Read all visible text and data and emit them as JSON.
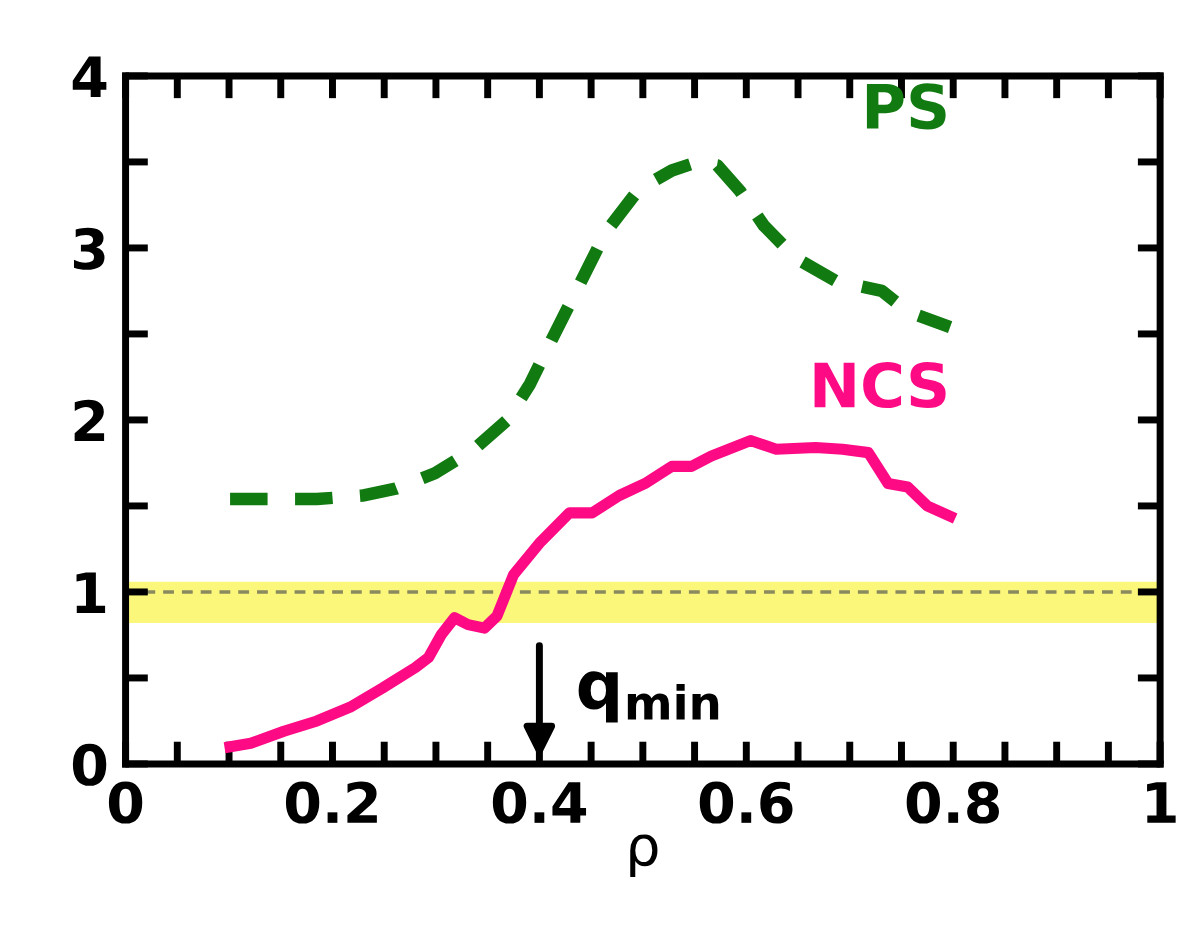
{
  "chart_data": {
    "type": "line",
    "xlabel": "ρ",
    "xlim": [
      0,
      1
    ],
    "ylim": [
      0,
      4
    ],
    "xticks": [
      0,
      {
        "value": 0.05,
        "label": null
      },
      0.2,
      {
        "value": 0.1,
        "label": null
      },
      {
        "value": 0.15,
        "label": null
      },
      {
        "value": 0.25,
        "label": null
      },
      {
        "value": 0.3,
        "label": null
      },
      {
        "value": 0.35,
        "label": null
      },
      0.4,
      {
        "value": 0.45,
        "label": null
      },
      {
        "value": 0.5,
        "label": null
      },
      {
        "value": 0.55,
        "label": null
      },
      0.6,
      {
        "value": 0.65,
        "label": null
      },
      {
        "value": 0.7,
        "label": null
      },
      {
        "value": 0.75,
        "label": null
      },
      0.8,
      {
        "value": 0.85,
        "label": null
      },
      {
        "value": 0.9,
        "label": null
      },
      {
        "value": 0.95,
        "label": null
      },
      1
    ],
    "yticks": [
      0,
      {
        "value": 0.5,
        "label": null
      },
      1,
      {
        "value": 1.5,
        "label": null
      },
      2,
      {
        "value": 2.5,
        "label": null
      },
      3,
      {
        "value": 3.5,
        "label": null
      },
      4
    ],
    "grid": false,
    "legend": false,
    "series": [
      {
        "name": "PS",
        "color": "#117a11",
        "line_style": "dashed",
        "x": [
          0.101,
          0.185,
          0.229,
          0.261,
          0.299,
          0.337,
          0.369,
          0.391,
          0.413,
          0.439,
          0.464,
          0.496,
          0.528,
          0.553,
          0.572,
          0.594,
          0.617,
          0.648,
          0.686,
          0.731,
          0.756,
          0.797
        ],
        "values": [
          1.54,
          1.54,
          1.56,
          1.6,
          1.69,
          1.83,
          2.0,
          2.21,
          2.48,
          2.79,
          3.09,
          3.34,
          3.45,
          3.5,
          3.48,
          3.33,
          3.13,
          2.94,
          2.81,
          2.75,
          2.63,
          2.54
        ]
      },
      {
        "name": "NCS",
        "color": "#ff0a85",
        "line_style": "solid",
        "x": [
          0.101,
          0.121,
          0.153,
          0.185,
          0.217,
          0.248,
          0.28,
          0.293,
          0.305,
          0.318,
          0.331,
          0.347,
          0.359,
          0.375,
          0.401,
          0.429,
          0.451,
          0.477,
          0.502,
          0.528,
          0.547,
          0.566,
          0.604,
          0.629,
          0.667,
          0.693,
          0.718,
          0.737,
          0.756,
          0.775,
          0.797
        ],
        "values": [
          0.1,
          0.12,
          0.19,
          0.25,
          0.33,
          0.44,
          0.56,
          0.62,
          0.75,
          0.85,
          0.81,
          0.79,
          0.86,
          1.1,
          1.29,
          1.46,
          1.46,
          1.56,
          1.63,
          1.73,
          1.73,
          1.79,
          1.88,
          1.83,
          1.84,
          1.83,
          1.81,
          1.63,
          1.61,
          1.5,
          1.44
        ]
      }
    ],
    "bands": [
      {
        "axis": "y",
        "from": 0.82,
        "to": 1.06,
        "color": "#fbf77a"
      }
    ],
    "ref_lines": [
      {
        "axis": "y",
        "value": 1,
        "color": "#8a8a60",
        "line_style": "dashed"
      }
    ],
    "annotations": [
      "q$_{min}$"
    ]
  }
}
